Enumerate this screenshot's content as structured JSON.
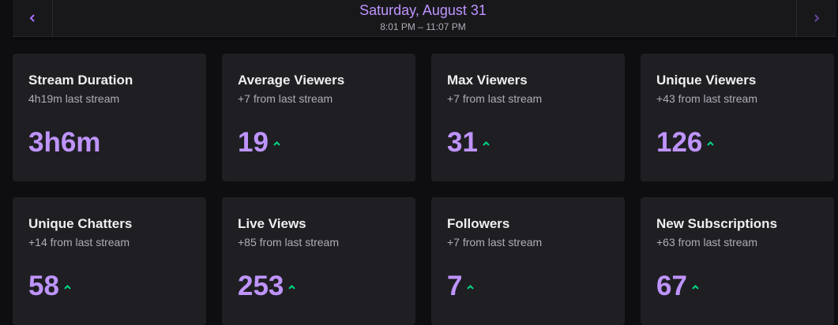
{
  "header": {
    "date": "Saturday, August 31",
    "time_range": "8:01 PM – 11:07 PM",
    "prev_icon": "chevron-left-icon",
    "next_icon": "chevron-right-icon"
  },
  "colors": {
    "accent": "#bf94ff",
    "trend_up": "#00db84",
    "card_bg": "#1f1f23",
    "page_bg": "#0e0e10"
  },
  "stats": [
    {
      "title": "Stream Duration",
      "subtitle": "4h19m last stream",
      "value": "3h6m",
      "trend": "none"
    },
    {
      "title": "Average Viewers",
      "subtitle": "+7 from last stream",
      "value": "19",
      "trend": "up"
    },
    {
      "title": "Max Viewers",
      "subtitle": "+7 from last stream",
      "value": "31",
      "trend": "up"
    },
    {
      "title": "Unique Viewers",
      "subtitle": "+43 from last stream",
      "value": "126",
      "trend": "up"
    },
    {
      "title": "Unique Chatters",
      "subtitle": "+14 from last stream",
      "value": "58",
      "trend": "up"
    },
    {
      "title": "Live Views",
      "subtitle": "+85 from last stream",
      "value": "253",
      "trend": "up"
    },
    {
      "title": "Followers",
      "subtitle": "+7 from last stream",
      "value": "7",
      "trend": "up"
    },
    {
      "title": "New Subscriptions",
      "subtitle": "+63 from last stream",
      "value": "67",
      "trend": "up"
    }
  ]
}
